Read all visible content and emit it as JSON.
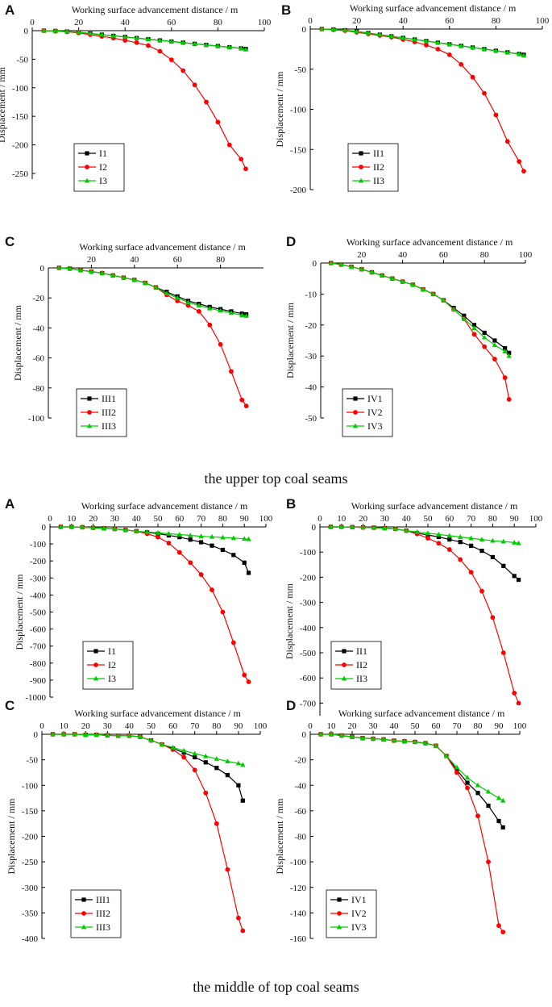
{
  "captions": {
    "upper": "the upper top coal seams",
    "middle": "the middle of top coal seams"
  },
  "colors": {
    "I1": "#000000",
    "I2": "#ff0000",
    "I3": "#00cc00",
    "axis": "#000000"
  },
  "chart_data": [
    {
      "type": "line",
      "group": "upper",
      "panel": "A",
      "title": "",
      "xlabel": "Working surface advancement distance / m",
      "ylabel": "Displacement / mm",
      "xlim": [
        0,
        100
      ],
      "ylim": [
        -260,
        0
      ],
      "xticks": [
        0,
        20,
        40,
        60,
        80,
        100
      ],
      "yticks": [
        0,
        -50,
        -100,
        -150,
        -200,
        -250
      ],
      "legend": [
        "I1",
        "I2",
        "I3"
      ],
      "x": [
        5,
        10,
        15,
        20,
        25,
        30,
        35,
        40,
        45,
        50,
        55,
        60,
        65,
        70,
        75,
        80,
        85,
        90,
        92
      ],
      "series": [
        {
          "name": "I1",
          "values": [
            0,
            -0.5,
            -1.5,
            -3,
            -5,
            -7,
            -9,
            -11,
            -13,
            -15,
            -17,
            -19,
            -21,
            -23,
            -25,
            -27,
            -29,
            -31,
            -32
          ]
        },
        {
          "name": "I2",
          "values": [
            0,
            -1,
            -2,
            -4,
            -7,
            -10,
            -13,
            -17,
            -21,
            -26,
            -36,
            -51,
            -70,
            -95,
            -125,
            -160,
            -200,
            -225,
            -242
          ]
        },
        {
          "name": "I3",
          "values": [
            0,
            -0.5,
            -1.5,
            -3,
            -5,
            -7,
            -9,
            -11,
            -13,
            -15,
            -17,
            -19,
            -21,
            -23,
            -25,
            -27,
            -29,
            -31,
            -33
          ]
        }
      ]
    },
    {
      "type": "line",
      "group": "upper",
      "panel": "B",
      "title": "",
      "xlabel": "Working surface advancement distance / m",
      "ylabel": "Displacement / mm",
      "xlim": [
        0,
        100
      ],
      "ylim": [
        -200,
        0
      ],
      "xticks": [
        0,
        20,
        40,
        60,
        80,
        100
      ],
      "yticks": [
        0,
        -50,
        -100,
        -150,
        -200
      ],
      "legend": [
        "II1",
        "II2",
        "II3"
      ],
      "x": [
        5,
        10,
        15,
        20,
        25,
        30,
        35,
        40,
        45,
        50,
        55,
        60,
        65,
        70,
        75,
        80,
        85,
        90,
        92
      ],
      "series": [
        {
          "name": "II1",
          "values": [
            0,
            -0.5,
            -1.5,
            -3,
            -5,
            -7,
            -9,
            -11,
            -13,
            -15,
            -17,
            -19,
            -21,
            -23,
            -25,
            -27,
            -29,
            -31,
            -32
          ]
        },
        {
          "name": "II2",
          "values": [
            0,
            -1,
            -2,
            -4,
            -6,
            -8,
            -10,
            -13,
            -16,
            -20,
            -25,
            -32,
            -44,
            -60,
            -80,
            -107,
            -140,
            -165,
            -177
          ]
        },
        {
          "name": "II3",
          "values": [
            0,
            -0.5,
            -1.5,
            -3,
            -5,
            -7,
            -9,
            -11,
            -13,
            -15,
            -17,
            -19,
            -21,
            -23,
            -25,
            -27,
            -29,
            -31,
            -33
          ]
        }
      ]
    },
    {
      "type": "line",
      "group": "upper",
      "panel": "C",
      "title": "",
      "xlabel": "Working surface advancement distance / m",
      "ylabel": "Displacement / mm",
      "xlim": [
        0,
        100
      ],
      "ylim": [
        -100,
        0
      ],
      "xticks": [
        20,
        40,
        60,
        80
      ],
      "yticks": [
        0,
        -20,
        -40,
        -60,
        -80,
        -100
      ],
      "legend": [
        "III1",
        "III2",
        "III3"
      ],
      "x": [
        5,
        10,
        15,
        20,
        25,
        30,
        35,
        40,
        45,
        50,
        55,
        60,
        65,
        70,
        75,
        80,
        85,
        90,
        92
      ],
      "series": [
        {
          "name": "III1",
          "values": [
            0,
            -0.5,
            -1.5,
            -2.5,
            -3.5,
            -5,
            -6.5,
            -8,
            -10,
            -13,
            -16,
            -19,
            -22,
            -24,
            -26,
            -27.5,
            -29,
            -30.5,
            -31
          ]
        },
        {
          "name": "III2",
          "values": [
            0,
            -0.5,
            -1.5,
            -2.5,
            -3.5,
            -5,
            -6.5,
            -8,
            -10,
            -13,
            -18,
            -22,
            -25,
            -29,
            -38,
            -51,
            -69,
            -88,
            -92
          ]
        },
        {
          "name": "III3",
          "values": [
            0,
            -0.5,
            -1.5,
            -2.5,
            -3.5,
            -5,
            -6.5,
            -8,
            -10,
            -13,
            -17,
            -20,
            -23,
            -25,
            -27,
            -28.5,
            -30,
            -31.5,
            -32
          ]
        }
      ]
    },
    {
      "type": "line",
      "group": "upper",
      "panel": "D",
      "title": "",
      "xlabel": "Working surface advancement distance / m",
      "ylabel": "Displacement / mm",
      "xlim": [
        0,
        100
      ],
      "ylim": [
        -50,
        0
      ],
      "xticks": [
        20,
        40,
        60,
        80,
        100
      ],
      "yticks": [
        0,
        -10,
        -20,
        -30,
        -40,
        -50
      ],
      "legend": [
        "IV1",
        "IV2",
        "IV3"
      ],
      "x": [
        5,
        10,
        15,
        20,
        25,
        30,
        35,
        40,
        45,
        50,
        55,
        60,
        65,
        70,
        75,
        80,
        85,
        90,
        92
      ],
      "series": [
        {
          "name": "IV1",
          "values": [
            0,
            -0.5,
            -1.2,
            -2,
            -3,
            -4,
            -5,
            -6,
            -7,
            -8.5,
            -10,
            -12,
            -14.5,
            -17,
            -20,
            -22.5,
            -25,
            -27.5,
            -29
          ]
        },
        {
          "name": "IV2",
          "values": [
            0,
            -0.5,
            -1.2,
            -2,
            -3,
            -4,
            -5,
            -6,
            -7,
            -8.5,
            -10,
            -12,
            -15,
            -18,
            -23,
            -27,
            -31,
            -37,
            -44
          ]
        },
        {
          "name": "IV3",
          "values": [
            0,
            -0.5,
            -1.2,
            -2,
            -3,
            -4,
            -5,
            -6,
            -7,
            -8.5,
            -10,
            -12,
            -15,
            -18,
            -21,
            -24,
            -26.5,
            -28.5,
            -30
          ]
        }
      ]
    },
    {
      "type": "line",
      "group": "middle",
      "panel": "A",
      "title": "",
      "xlabel": "Working surface advancement distance / m",
      "ylabel": "Displacement / mm",
      "xlim": [
        0,
        100
      ],
      "ylim": [
        -1000,
        0
      ],
      "xticks": [
        0,
        10,
        20,
        30,
        40,
        50,
        60,
        70,
        80,
        90,
        100
      ],
      "yticks": [
        0,
        -100,
        -200,
        -300,
        -400,
        -500,
        -600,
        -700,
        -800,
        -900,
        -1000
      ],
      "legend": [
        "I1",
        "I2",
        "I3"
      ],
      "x": [
        5,
        10,
        15,
        20,
        25,
        30,
        35,
        40,
        45,
        50,
        55,
        60,
        65,
        70,
        75,
        80,
        85,
        90,
        92
      ],
      "series": [
        {
          "name": "I1",
          "values": [
            0,
            0,
            -2,
            -5,
            -8,
            -12,
            -18,
            -25,
            -32,
            -40,
            -50,
            -60,
            -75,
            -90,
            -110,
            -135,
            -165,
            -210,
            -270
          ]
        },
        {
          "name": "I2",
          "values": [
            0,
            0,
            -2,
            -5,
            -8,
            -12,
            -18,
            -25,
            -40,
            -60,
            -95,
            -150,
            -210,
            -280,
            -370,
            -500,
            -680,
            -870,
            -910
          ]
        },
        {
          "name": "I3",
          "values": [
            0,
            0,
            -2,
            -5,
            -8,
            -12,
            -18,
            -25,
            -30,
            -35,
            -40,
            -45,
            -50,
            -55,
            -58,
            -62,
            -65,
            -70,
            -72
          ]
        }
      ]
    },
    {
      "type": "line",
      "group": "middle",
      "panel": "B",
      "title": "",
      "xlabel": "Working surface advancement distance / m",
      "ylabel": "Displacement / mm",
      "xlim": [
        0,
        100
      ],
      "ylim": [
        -750,
        0
      ],
      "xticks": [
        0,
        10,
        20,
        30,
        40,
        50,
        60,
        70,
        80,
        90,
        100
      ],
      "yticks": [
        0,
        -100,
        -200,
        -300,
        -400,
        -500,
        -600,
        -700
      ],
      "legend": [
        "II1",
        "II2",
        "II3"
      ],
      "x": [
        5,
        10,
        15,
        20,
        25,
        30,
        35,
        40,
        45,
        50,
        55,
        60,
        65,
        70,
        75,
        80,
        85,
        90,
        92
      ],
      "series": [
        {
          "name": "II1",
          "values": [
            0,
            0,
            -1,
            -2,
            -3,
            -5,
            -8,
            -15,
            -25,
            -32,
            -40,
            -50,
            -60,
            -75,
            -95,
            -120,
            -155,
            -195,
            -210
          ]
        },
        {
          "name": "II2",
          "values": [
            0,
            0,
            -1,
            -2,
            -3,
            -5,
            -8,
            -15,
            -28,
            -45,
            -65,
            -90,
            -130,
            -180,
            -255,
            -360,
            -500,
            -660,
            -700
          ]
        },
        {
          "name": "II3",
          "values": [
            0,
            0,
            -1,
            -2,
            -3,
            -5,
            -8,
            -15,
            -20,
            -25,
            -30,
            -35,
            -40,
            -45,
            -50,
            -55,
            -58,
            -62,
            -65
          ]
        }
      ]
    },
    {
      "type": "line",
      "group": "middle",
      "panel": "C",
      "title": "",
      "xlabel": "Working surface advancement distance / m",
      "ylabel": "Displacement / mm",
      "xlim": [
        0,
        100
      ],
      "ylim": [
        -400,
        0
      ],
      "xticks": [
        0,
        10,
        20,
        30,
        40,
        50,
        60,
        70,
        80,
        90,
        100
      ],
      "yticks": [
        0,
        -50,
        -100,
        -150,
        -200,
        -250,
        -300,
        -350,
        -400
      ],
      "legend": [
        "III1",
        "III2",
        "III3"
      ],
      "x": [
        5,
        10,
        15,
        20,
        25,
        30,
        35,
        40,
        45,
        50,
        55,
        60,
        65,
        70,
        75,
        80,
        85,
        90,
        92
      ],
      "series": [
        {
          "name": "III1",
          "values": [
            0,
            0,
            0,
            -1,
            -1,
            -2,
            -3,
            -3,
            -5,
            -12,
            -20,
            -28,
            -36,
            -45,
            -55,
            -66,
            -80,
            -100,
            -130
          ]
        },
        {
          "name": "III2",
          "values": [
            0,
            0,
            0,
            -1,
            -1,
            -2,
            -3,
            -3,
            -5,
            -12,
            -20,
            -30,
            -45,
            -70,
            -115,
            -175,
            -265,
            -360,
            -385
          ]
        },
        {
          "name": "III3",
          "values": [
            0,
            0,
            0,
            -1,
            -1,
            -2,
            -3,
            -3,
            -5,
            -12,
            -20,
            -26,
            -32,
            -38,
            -43,
            -48,
            -53,
            -57,
            -60
          ]
        }
      ]
    },
    {
      "type": "line",
      "group": "middle",
      "panel": "D",
      "title": "",
      "xlabel": "Working surface advancement distance / m",
      "ylabel": "Displacement / mm",
      "xlim": [
        0,
        100
      ],
      "ylim": [
        -160,
        0
      ],
      "xticks": [
        0,
        10,
        20,
        30,
        40,
        50,
        60,
        70,
        80,
        90,
        100
      ],
      "yticks": [
        0,
        -20,
        -40,
        -60,
        -80,
        -100,
        -120,
        -140,
        -160
      ],
      "legend": [
        "IV1",
        "IV2",
        "IV3"
      ],
      "x": [
        5,
        10,
        15,
        20,
        25,
        30,
        35,
        40,
        45,
        50,
        55,
        60,
        65,
        70,
        75,
        80,
        85,
        90,
        92
      ],
      "series": [
        {
          "name": "IV1",
          "values": [
            0,
            0,
            -1,
            -2,
            -3,
            -3.5,
            -4,
            -5,
            -5.5,
            -6,
            -7,
            -9,
            -17,
            -28,
            -38,
            -46,
            -56,
            -68,
            -73
          ]
        },
        {
          "name": "IV2",
          "values": [
            0,
            0,
            -1,
            -2,
            -3,
            -3.5,
            -4,
            -5,
            -5.5,
            -6,
            -7,
            -9,
            -17,
            -30,
            -42,
            -64,
            -100,
            -150,
            -155
          ]
        },
        {
          "name": "IV3",
          "values": [
            0,
            0,
            -1,
            -2,
            -3,
            -3.5,
            -4,
            -5,
            -5.5,
            -6,
            -7,
            -9,
            -17,
            -26,
            -34,
            -40,
            -45,
            -50,
            -52
          ]
        }
      ]
    }
  ]
}
